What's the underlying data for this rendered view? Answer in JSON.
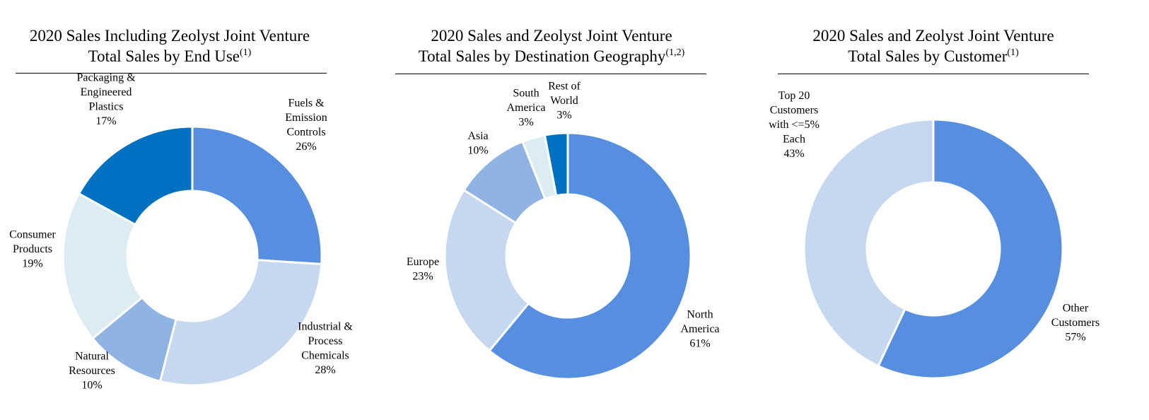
{
  "chart_data": [
    {
      "type": "donut",
      "title": {
        "line1": "2020 Sales Including Zeolyst Joint Venture",
        "line2": "Total Sales by End Use",
        "note": "(1)"
      },
      "slices": [
        {
          "label": [
            "Fuels &",
            "Emission",
            "Controls",
            "26%"
          ],
          "value": 26,
          "color": "#568FDF"
        },
        {
          "label": [
            "Industrial &",
            "Process",
            "Chemicals",
            "28%"
          ],
          "value": 28,
          "color": "#C5D8F0"
        },
        {
          "label": [
            "Natural",
            "Resources",
            "10%"
          ],
          "value": 10,
          "color": "#8FB3E3"
        },
        {
          "label": [
            "Consumer",
            "Products",
            "19%"
          ],
          "value": 19,
          "color": "#DBEDF3"
        },
        {
          "label": [
            "Packaging &",
            "Engineered",
            "Plastics",
            "17%"
          ],
          "value": 17,
          "color": "#0070C0"
        }
      ]
    },
    {
      "type": "donut",
      "title": {
        "line1": "2020 Sales and Zeolyst Joint Venture",
        "line2": "Total Sales by Destination Geography",
        "note": "(1,2)"
      },
      "slices": [
        {
          "label": [
            "North",
            "America",
            "61%"
          ],
          "value": 61,
          "color": "#568FDF"
        },
        {
          "label": [
            "Europe",
            "23%"
          ],
          "value": 23,
          "color": "#C5D8F0"
        },
        {
          "label": [
            "Asia",
            "10%"
          ],
          "value": 10,
          "color": "#8FB3E3"
        },
        {
          "label": [
            "South",
            "America",
            "3%"
          ],
          "value": 3,
          "color": "#DBEDF3"
        },
        {
          "label": [
            "Rest of",
            "World",
            "3%"
          ],
          "value": 3,
          "color": "#0070C0"
        }
      ]
    },
    {
      "type": "donut",
      "title": {
        "line1": "2020 Sales and Zeolyst Joint Venture",
        "line2": "Total Sales by Customer",
        "note": "(1)"
      },
      "slices": [
        {
          "label": [
            "Other",
            "Customers",
            "57%"
          ],
          "value": 57,
          "color": "#568FDF"
        },
        {
          "label": [
            "Top 20",
            "Customers",
            "with <=5%",
            "Each",
            "43%"
          ],
          "value": 43,
          "color": "#C5D8F0"
        }
      ]
    }
  ]
}
